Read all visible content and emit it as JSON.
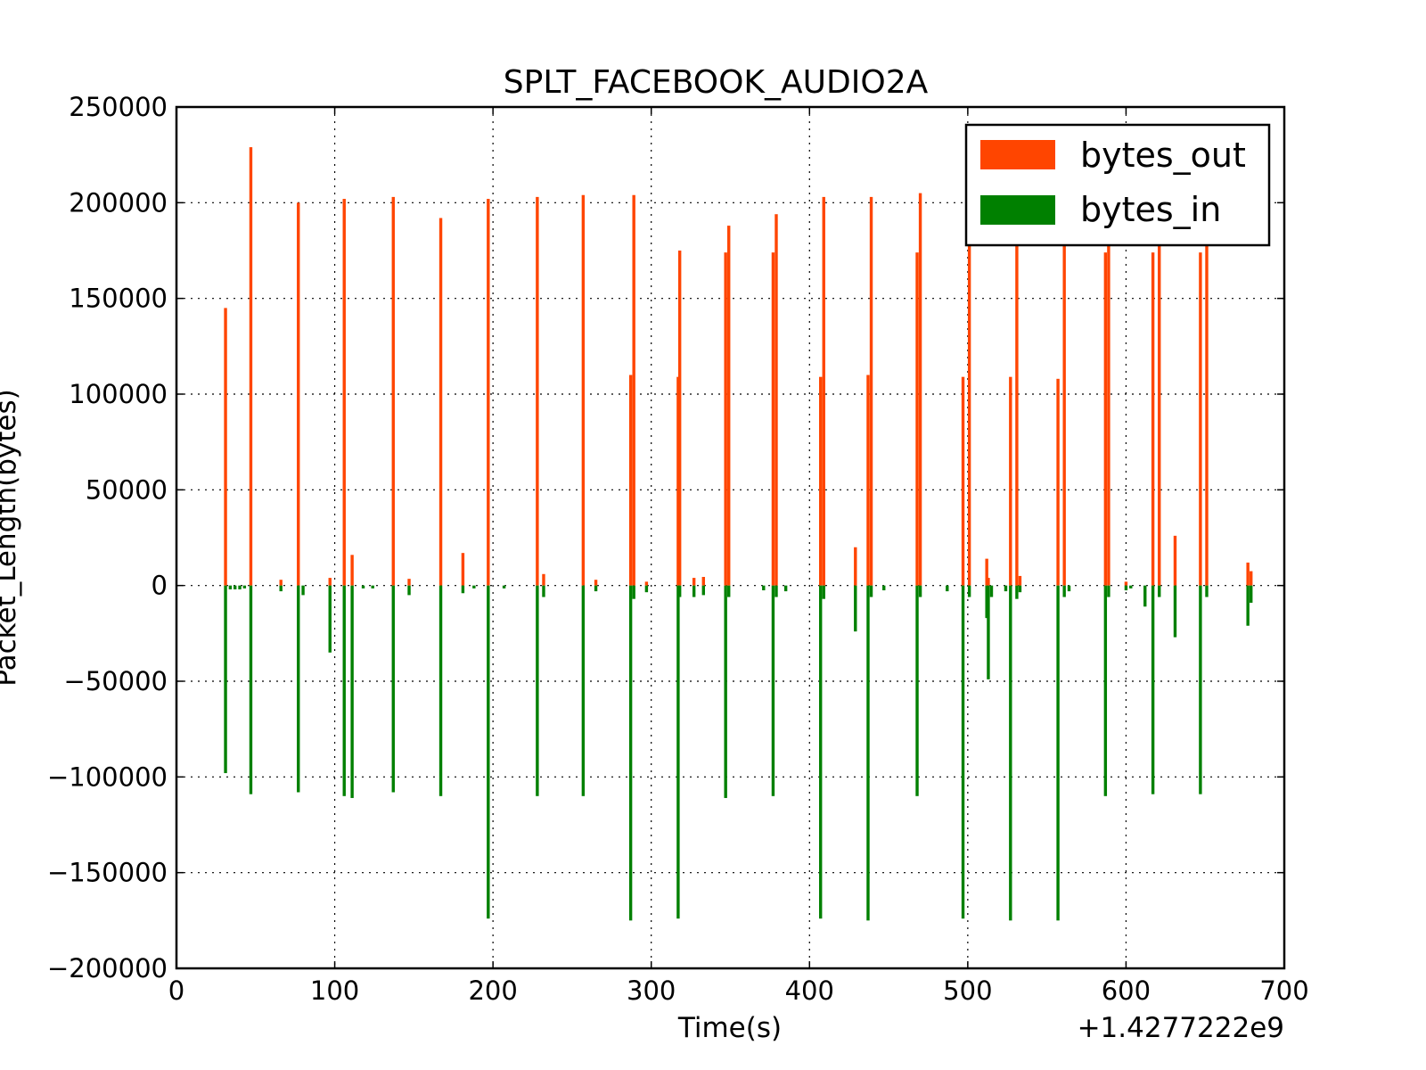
{
  "chart_data": {
    "type": "bar",
    "title": "SPLT_FACEBOOK_AUDIO2A",
    "xlabel": "Time(s)",
    "ylabel": "Packet_Length(bytes)",
    "x_offset_label": "+1.4277222e9",
    "xlim": [
      0,
      700
    ],
    "ylim": [
      -200000,
      250000
    ],
    "xticks": [
      0,
      100,
      200,
      300,
      400,
      500,
      600,
      700
    ],
    "xtick_labels": [
      "0",
      "100",
      "200",
      "300",
      "400",
      "500",
      "600",
      "700"
    ],
    "yticks": [
      -200000,
      -150000,
      -100000,
      -50000,
      0,
      50000,
      100000,
      150000,
      200000,
      250000
    ],
    "ytick_labels": [
      "−200000",
      "−150000",
      "−100000",
      "−50000",
      "0",
      "50000",
      "100000",
      "150000",
      "200000",
      "250000"
    ],
    "grid": true,
    "legend_position": "top-right",
    "series": [
      {
        "name": "bytes_out",
        "color": "#ff4500",
        "x": [
          31,
          47,
          66,
          77,
          97,
          106,
          111,
          137,
          147,
          167,
          181,
          197,
          228,
          232,
          257,
          265,
          287,
          289,
          297,
          317,
          318,
          327,
          333,
          347,
          349,
          377,
          379,
          407,
          409,
          429,
          437,
          439,
          468,
          470,
          497,
          501,
          512,
          513,
          527,
          531,
          533,
          557,
          561,
          587,
          589,
          600,
          617,
          621,
          631,
          647,
          651,
          677,
          679
        ],
        "values": [
          145000,
          229000,
          3000,
          200000,
          4000,
          202000,
          16000,
          203000,
          3500,
          192000,
          17000,
          202000,
          203000,
          6000,
          204000,
          3000,
          110000,
          204000,
          2000,
          109000,
          175000,
          4000,
          4500,
          174000,
          188000,
          174000,
          194000,
          109000,
          203000,
          20000,
          110000,
          203000,
          174000,
          205000,
          109000,
          200000,
          14000,
          4000,
          109000,
          190000,
          5000,
          108000,
          192000,
          174000,
          190000,
          2000,
          174000,
          190000,
          26000,
          174000,
          190000,
          12000,
          7500
        ]
      },
      {
        "name": "bytes_in",
        "color": "#008000",
        "x": [
          31,
          34,
          37,
          40,
          43,
          47,
          66,
          77,
          80,
          97,
          106,
          111,
          118,
          124,
          137,
          147,
          167,
          181,
          188,
          197,
          207,
          228,
          232,
          257,
          265,
          287,
          289,
          297,
          317,
          318,
          327,
          333,
          347,
          349,
          371,
          377,
          379,
          385,
          407,
          409,
          429,
          437,
          439,
          447,
          468,
          470,
          487,
          497,
          501,
          512,
          513,
          515,
          524,
          527,
          531,
          533,
          557,
          561,
          564,
          587,
          589,
          600,
          603,
          612,
          617,
          621,
          631,
          647,
          651,
          677,
          679
        ],
        "values": [
          -98000,
          -2000,
          -2000,
          -2000,
          -1500,
          -109000,
          -3000,
          -108000,
          -5000,
          -35000,
          -110000,
          -111000,
          -1500,
          -1500,
          -108000,
          -5000,
          -110000,
          -4000,
          -1500,
          -174000,
          -1500,
          -110000,
          -6000,
          -110000,
          -3000,
          -175000,
          -7000,
          -3500,
          -174000,
          -6000,
          -6000,
          -5000,
          -111000,
          -6000,
          -2500,
          -110000,
          -6000,
          -3000,
          -174000,
          -7000,
          -24000,
          -175000,
          -6000,
          -2500,
          -110000,
          -6000,
          -3000,
          -174000,
          -6000,
          -17000,
          -49000,
          -6000,
          -3000,
          -175000,
          -7000,
          -3500,
          -175000,
          -6000,
          -3000,
          -110000,
          -6000,
          -2500,
          -1500,
          -11000,
          -109000,
          -6000,
          -27000,
          -109000,
          -6000,
          -21000,
          -9000
        ]
      }
    ]
  }
}
